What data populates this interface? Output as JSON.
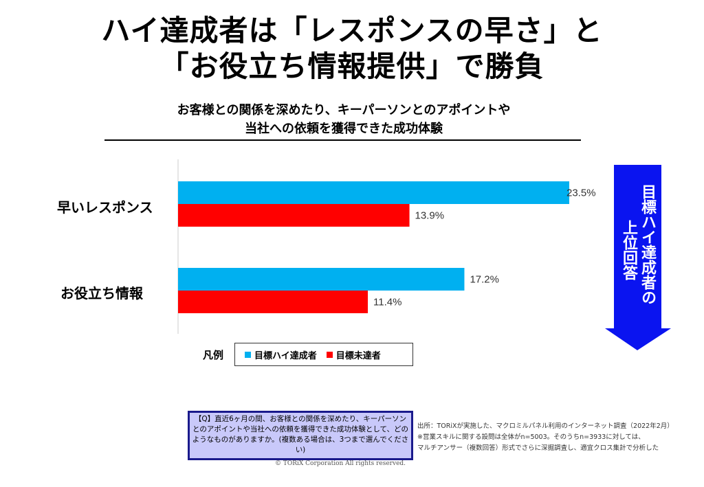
{
  "title": {
    "line1": "ハイ達成者は「レスポンスの早さ」と",
    "line2": "「お役立ち情報提供」で勝負"
  },
  "subtitle": {
    "line1": "お客様との関係を深めたり、キーパーソンとのアポイントや",
    "line2": "当社への依頼を獲得できた成功体験"
  },
  "chart_data": {
    "type": "bar",
    "orientation": "horizontal",
    "title": "お客様との関係を深めたり、キーパーソンとのアポイントや当社への依頼を獲得できた成功体験",
    "categories": [
      "早いレスポンス",
      "お役立ち情報"
    ],
    "series": [
      {
        "name": "目標ハイ達成者",
        "color": "#00b0f0",
        "values": [
          23.5,
          17.2
        ],
        "labels": [
          "23.5%",
          "17.2%"
        ]
      },
      {
        "name": "目標未達者",
        "color": "#ff0000",
        "values": [
          13.9,
          11.4
        ],
        "labels": [
          "13.9%",
          "11.4%"
        ]
      }
    ],
    "xlim": [
      0,
      25
    ],
    "unit": "%",
    "grid": false,
    "legend_title": "凡例",
    "legend_position": "bottom-left"
  },
  "arrow": {
    "col1": "目標ハイ達成者の",
    "col2": "上位回答",
    "color": "#0a14f0"
  },
  "question": "【Q】直近6ヶ月の間、お客様との関係を深めたり、キーパーソンとのアポイントや当社への依頼を獲得できた成功体験として、どのようなものがありますか。(複数ある場合は、3つまで選んでください)",
  "source": {
    "line1": "出所：TORiXが実施した、マクロミルパネル利用のインターネット調査（2022年2月）",
    "line2": "※営業スキルに関する設問は全体がn=5003。そのうちn=3933に対しては、",
    "line3": "マルチアンサー（複数回答）形式でさらに深掘調査し、適宜クロス集計で分析した"
  },
  "copyright": "© TORiX Corporation All rights reserved."
}
